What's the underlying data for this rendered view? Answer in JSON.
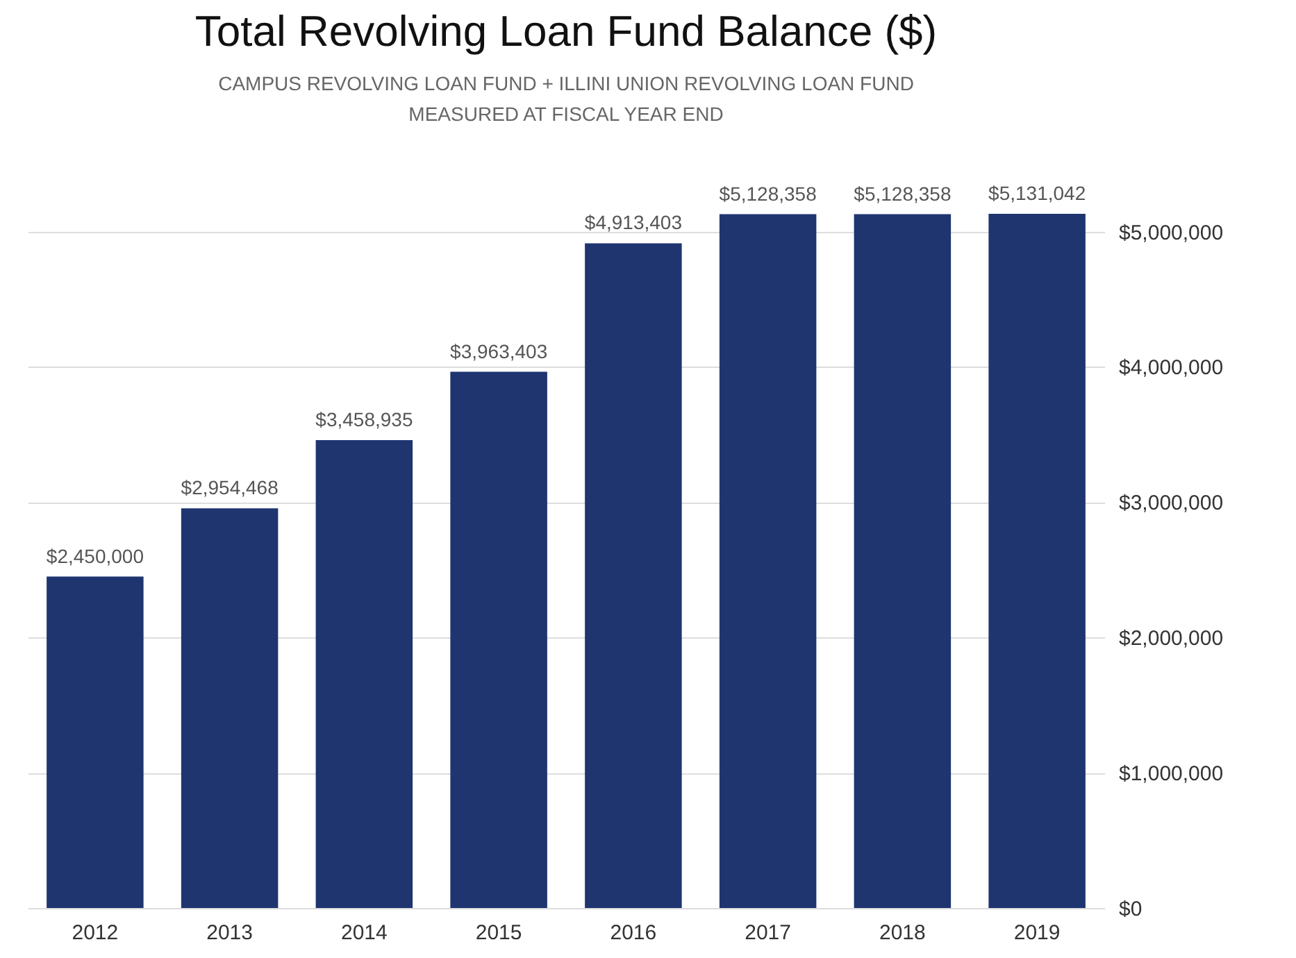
{
  "chart_data": {
    "type": "bar",
    "title": "Total Revolving Loan Fund Balance ($)",
    "subtitle": "CAMPUS REVOLVING LOAN FUND + ILLINI UNION REVOLVING LOAN FUND\nMEASURED AT FISCAL YEAR END",
    "categories": [
      "2012",
      "2013",
      "2014",
      "2015",
      "2016",
      "2017",
      "2018",
      "2019"
    ],
    "values": [
      2450000,
      2954468,
      3458935,
      3963403,
      4913403,
      5128358,
      5128358,
      5131042
    ],
    "value_labels": [
      "$2,450,000",
      "$2,954,468",
      "$3,458,935",
      "$3,963,403",
      "$4,913,403",
      "$5,128,358",
      "$5,128,358",
      "$5,131,042"
    ],
    "color": "#1f3570",
    "ylim": [
      0,
      5131042
    ],
    "yticks": [
      {
        "value": 0,
        "label": "$0"
      },
      {
        "value": 1000000,
        "label": "$1,000,000"
      },
      {
        "value": 2000000,
        "label": "$2,000,000"
      },
      {
        "value": 3000000,
        "label": "$3,000,000"
      },
      {
        "value": 4000000,
        "label": "$4,000,000"
      },
      {
        "value": 5000000,
        "label": "$5,000,000"
      }
    ],
    "grid": "y"
  }
}
